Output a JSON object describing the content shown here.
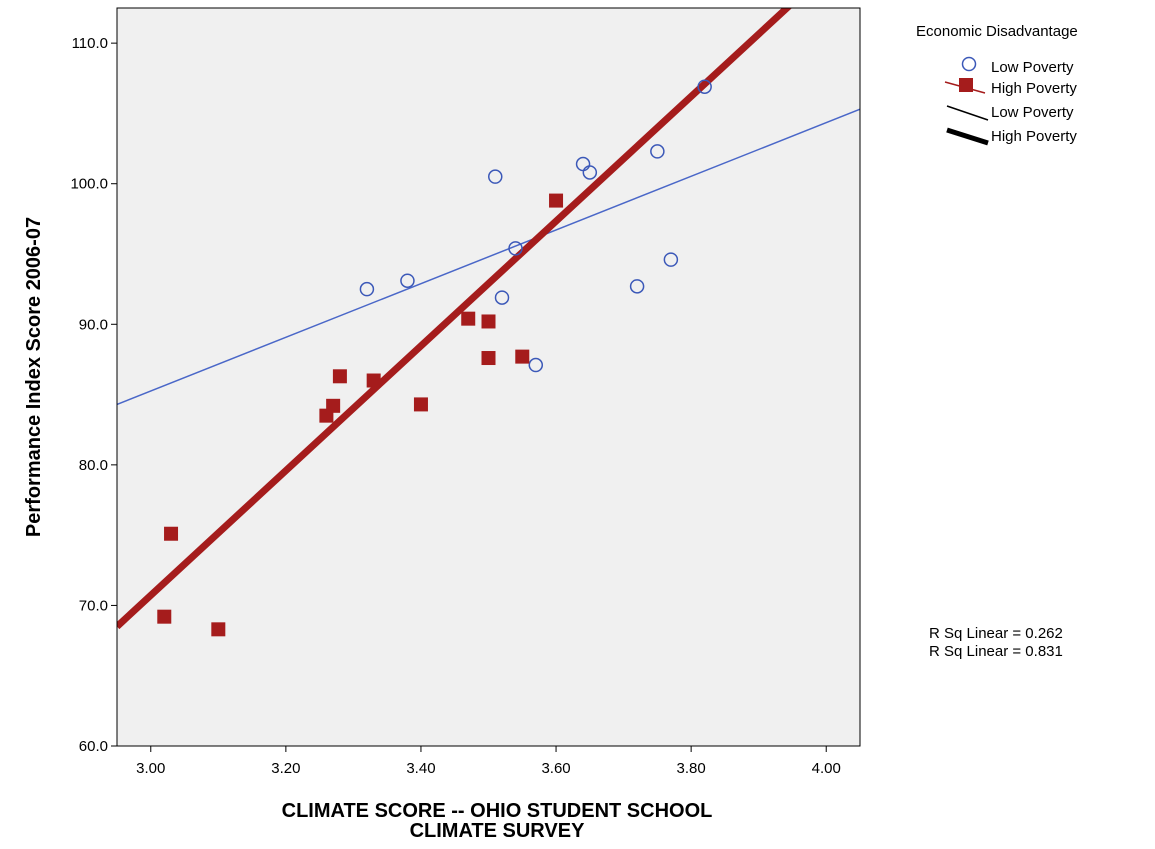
{
  "chart_data": {
    "type": "scatter",
    "xlabel_lines": [
      "CLIMATE SCORE -- OHIO STUDENT SCHOOL",
      "CLIMATE SURVEY"
    ],
    "ylabel": "Performance Index Score 2006-07",
    "xlim": [
      2.95,
      4.05
    ],
    "ylim": [
      60.0,
      112.5
    ],
    "x_ticks": [
      3.0,
      3.2,
      3.4,
      3.6,
      3.8,
      4.0
    ],
    "x_tick_labels": [
      "3.00",
      "3.20",
      "3.40",
      "3.60",
      "3.80",
      "4.00"
    ],
    "y_ticks": [
      60.0,
      70.0,
      80.0,
      90.0,
      100.0,
      110.0
    ],
    "y_tick_labels": [
      "60.0",
      "70.0",
      "80.0",
      "90.0",
      "100.0",
      "110.0"
    ],
    "grid": false,
    "legend_title": "Economic Disadvantage",
    "legend_position": "top-right",
    "series": [
      {
        "name": "Low Poverty",
        "marker": "circle",
        "color": "#3b58b8",
        "points": [
          {
            "x": 3.32,
            "y": 92.5
          },
          {
            "x": 3.38,
            "y": 93.1
          },
          {
            "x": 3.51,
            "y": 100.5
          },
          {
            "x": 3.52,
            "y": 91.9
          },
          {
            "x": 3.54,
            "y": 95.4
          },
          {
            "x": 3.57,
            "y": 87.1
          },
          {
            "x": 3.64,
            "y": 101.4
          },
          {
            "x": 3.65,
            "y": 100.8
          },
          {
            "x": 3.72,
            "y": 92.7
          },
          {
            "x": 3.75,
            "y": 102.3
          },
          {
            "x": 3.77,
            "y": 94.6
          },
          {
            "x": 3.82,
            "y": 106.9
          }
        ]
      },
      {
        "name": "High Poverty",
        "marker": "square",
        "color": "#a51c1c",
        "points": [
          {
            "x": 3.02,
            "y": 69.2
          },
          {
            "x": 3.03,
            "y": 75.1
          },
          {
            "x": 3.1,
            "y": 68.3
          },
          {
            "x": 3.26,
            "y": 83.5
          },
          {
            "x": 3.27,
            "y": 84.2
          },
          {
            "x": 3.28,
            "y": 86.3
          },
          {
            "x": 3.33,
            "y": 86.0
          },
          {
            "x": 3.4,
            "y": 84.3
          },
          {
            "x": 3.47,
            "y": 90.4
          },
          {
            "x": 3.5,
            "y": 87.6
          },
          {
            "x": 3.5,
            "y": 90.2
          },
          {
            "x": 3.55,
            "y": 87.7
          },
          {
            "x": 3.6,
            "y": 98.8
          }
        ]
      }
    ],
    "fit_lines": [
      {
        "name": "Low Poverty",
        "color": "#4a67c8",
        "x": [
          2.95,
          4.05
        ],
        "y": [
          84.3,
          105.3
        ],
        "r_sq_label": "R Sq Linear = 0.262"
      },
      {
        "name": "High Poverty",
        "color": "#a51c1c",
        "x": [
          2.95,
          4.05
        ],
        "y": [
          68.5,
          117.3
        ],
        "r_sq_label": "R Sq Linear = 0.831"
      }
    ],
    "legend_entries": [
      {
        "label": "Low Poverty",
        "kind": "circle-marker"
      },
      {
        "label": "High Poverty",
        "kind": "square-marker"
      },
      {
        "label": "Low Poverty",
        "kind": "thin-line"
      },
      {
        "label": "High Poverty",
        "kind": "thick-line"
      }
    ],
    "colors": {
      "plot_background": "#f0f0f0",
      "frame": "#000000"
    }
  }
}
